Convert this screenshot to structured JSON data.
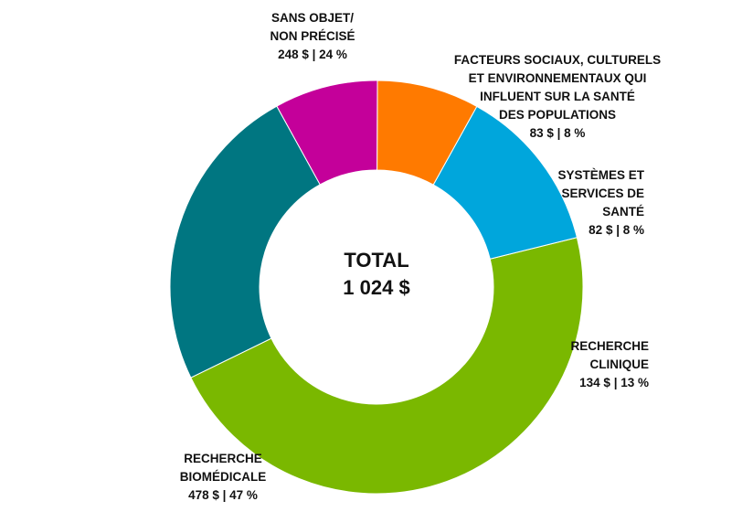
{
  "chart_data": {
    "type": "pie",
    "donut": true,
    "center_label": [
      "TOTAL",
      "1 024 $"
    ],
    "total": 1024,
    "unit": "$",
    "slices": [
      {
        "key": "biomedical",
        "label": [
          "RECHERCHE",
          "BIOMÉDICALE"
        ],
        "value": 478,
        "percent": 47,
        "value_text": "478 $ | 47 %",
        "color": "#7ab800"
      },
      {
        "key": "unspecified",
        "label": [
          "SANS OBJET/",
          "NON PRÉCISÉ"
        ],
        "value": 248,
        "percent": 24,
        "value_text": "248 $ | 24 %",
        "color": "#007681"
      },
      {
        "key": "social",
        "label": [
          "FACTEURS SOCIAUX, CULTURELS",
          "ET ENVIRONNEMENTAUX QUI",
          "INFLUENT SUR LA SANTÉ",
          "DES POPULATIONS"
        ],
        "value": 83,
        "percent": 8,
        "value_text": "83 $ | 8 %",
        "color": "#c4009a"
      },
      {
        "key": "systems",
        "label": [
          "SYSTÈMES ET",
          "SERVICES DE",
          "SANTÉ"
        ],
        "value": 82,
        "percent": 8,
        "value_text": "82 $ | 8 %",
        "color": "#ff7a00"
      },
      {
        "key": "clinical",
        "label": [
          "RECHERCHE",
          "CLINIQUE"
        ],
        "value": 134,
        "percent": 13,
        "value_text": "134 $ | 13 %",
        "color": "#00a6dc"
      }
    ]
  }
}
